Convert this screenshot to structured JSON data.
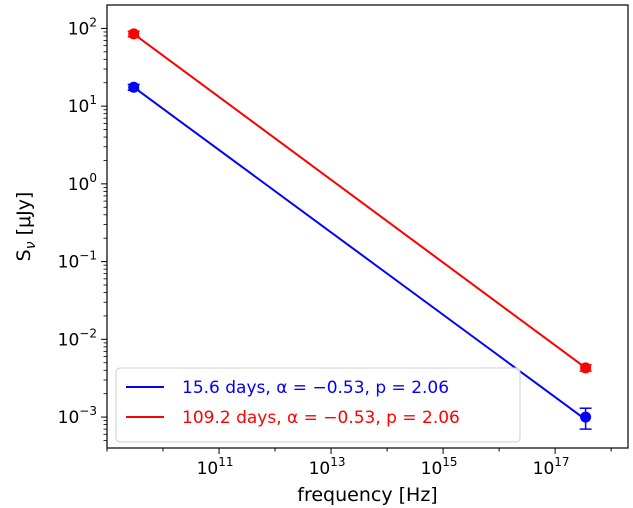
{
  "chart_data": {
    "type": "line",
    "xscale": "log",
    "yscale": "log",
    "xlim": [
      1000000000.0,
      2e+18
    ],
    "ylim": [
      0.0004,
      200
    ],
    "xlabel": "frequency [Hz]",
    "ylabel_main": "S",
    "ylabel_sub": "ν",
    "ylabel_rest": " [μJy]",
    "x_ticks": [
      {
        "base": "10",
        "exp": "11",
        "value": 100000000000.0
      },
      {
        "base": "10",
        "exp": "13",
        "value": 10000000000000.0
      },
      {
        "base": "10",
        "exp": "15",
        "value": 1000000000000000.0
      },
      {
        "base": "10",
        "exp": "17",
        "value": 1e+17
      }
    ],
    "y_ticks": [
      {
        "base": "10",
        "exp": "2",
        "value": 100
      },
      {
        "base": "10",
        "exp": "1",
        "value": 10
      },
      {
        "base": "10",
        "exp": "0",
        "value": 1
      },
      {
        "base": "10",
        "exp": "−1",
        "value": 0.1
      },
      {
        "base": "10",
        "exp": "−2",
        "value": 0.01
      },
      {
        "base": "10",
        "exp": "−3",
        "value": 0.001
      }
    ],
    "grid": false,
    "legend_position": "lower-left",
    "series": [
      {
        "name": "15.6 days, α = −0.53, p = 2.06",
        "color": "#0000ff",
        "line_x": [
          3000000000.0,
          3.5e+17
        ],
        "line_y": [
          17.5,
          0.00093
        ],
        "points": [
          {
            "x": 3000000000.0,
            "y": 17.5,
            "err_low": 1.5,
            "err_high": 1.5
          },
          {
            "x": 3.5e+17,
            "y": 0.001,
            "err_low": 0.0003,
            "err_high": 0.0003
          }
        ]
      },
      {
        "name": "109.2 days, α = −0.53, p = 2.06",
        "color": "#ff0000",
        "line_x": [
          3000000000.0,
          3.5e+17
        ],
        "line_y": [
          85,
          0.0043
        ],
        "points": [
          {
            "x": 3000000000.0,
            "y": 85,
            "err_low": 7,
            "err_high": 7
          },
          {
            "x": 3.5e+17,
            "y": 0.0043,
            "err_low": 0.0004,
            "err_high": 0.0004
          }
        ]
      }
    ]
  }
}
